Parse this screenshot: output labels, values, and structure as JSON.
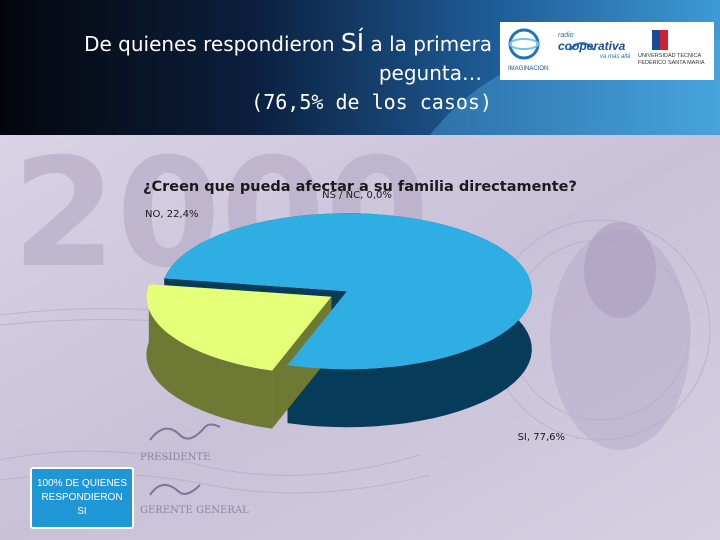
{
  "header": {
    "title_pre": "De quienes respondieron ",
    "title_emph": "SÍ",
    "title_post": " a la primera",
    "title_line2": "pegunta…",
    "title_line3": "(76,5% de los casos)"
  },
  "logos": {
    "imaginacion": "IMAGINACION",
    "radio_small": "radio",
    "radio_name": "cooperativa",
    "radio_tag": "va más allá",
    "university_line1": "UNIVERSIDAD TECNICA",
    "university_line2": "FEDERICO SANTA MARIA"
  },
  "background": {
    "banknote_number": "2000",
    "presidente": "PRESIDENTE",
    "gerente": "GERENTE GENERAL"
  },
  "note": {
    "text": "100% DE QUIENES RESPONDIERON SI"
  },
  "chart_data": {
    "type": "pie",
    "title": "¿Creen que pueda afectar a su familia directamente?",
    "slices": [
      {
        "label": "SI",
        "value": 77.6,
        "display": "SI, 77,6%",
        "color": "#2eaee3",
        "side_color": "#063c5a"
      },
      {
        "label": "NO",
        "value": 22.4,
        "display": "NO, 22,4%",
        "color": "#e6ff78",
        "side_color": "#6e7a34"
      },
      {
        "label": "NS / NC",
        "value": 0.0,
        "display": "NS / NC, 0,0%",
        "color": "#9b2a2a",
        "side_color": "#5a1414"
      }
    ],
    "exploded": "SI",
    "three_d": true
  }
}
